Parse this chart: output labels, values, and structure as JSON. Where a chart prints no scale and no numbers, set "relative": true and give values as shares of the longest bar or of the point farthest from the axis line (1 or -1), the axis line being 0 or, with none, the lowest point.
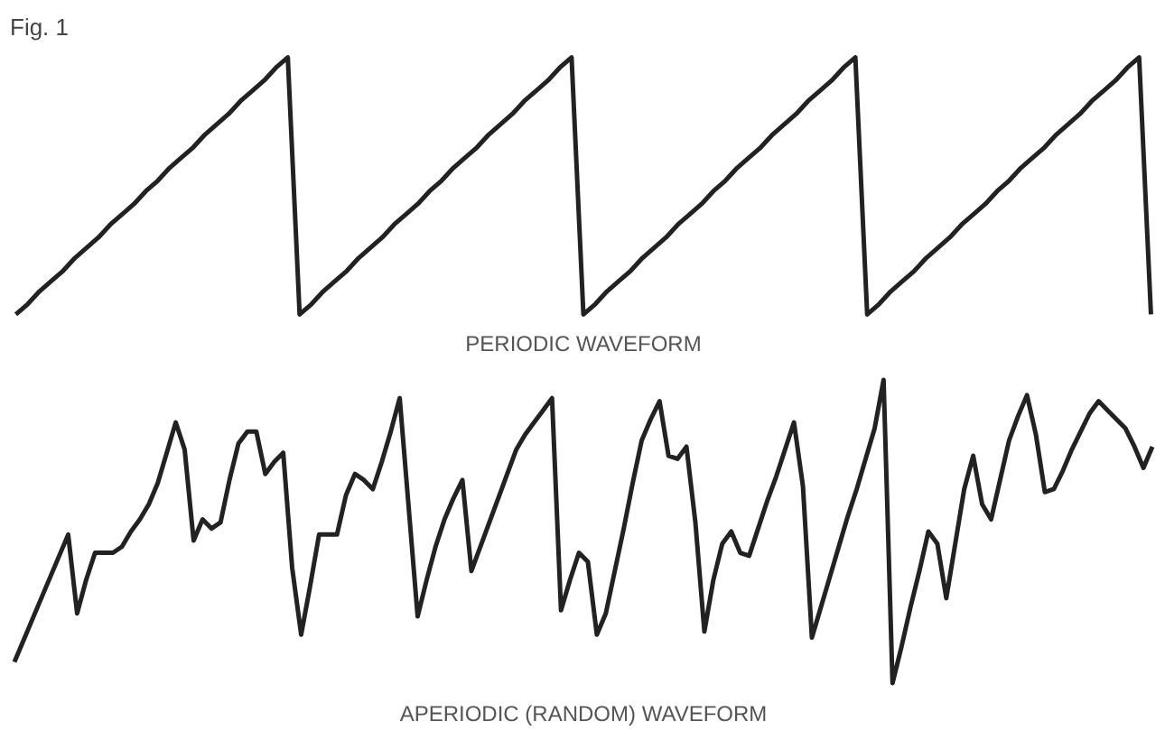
{
  "chart_data": [
    {
      "type": "line",
      "title": "Fig. 1",
      "xlabel": "PERIODIC WAVEFORM",
      "relative": true,
      "grid": false,
      "categories": [
        null,
        null,
        null,
        null,
        null,
        null,
        null,
        null,
        null,
        null,
        null,
        null,
        null,
        null,
        null,
        null,
        null,
        null,
        null,
        null,
        null,
        null,
        null,
        null,
        null,
        null,
        null,
        null,
        null,
        null,
        null,
        null,
        null,
        null,
        null,
        null,
        null,
        null,
        null,
        null,
        null,
        null,
        null,
        null,
        null,
        null,
        null,
        null,
        null,
        null,
        null,
        null,
        null,
        null,
        null,
        null,
        null,
        null,
        null,
        null,
        null,
        null,
        null,
        null,
        null,
        null,
        null,
        null,
        null,
        null,
        null,
        null,
        null,
        null,
        null,
        null,
        null,
        null,
        null,
        null,
        null,
        null,
        null,
        null,
        null,
        null,
        null,
        null,
        null,
        null,
        null,
        null,
        null,
        null,
        null,
        null,
        null
      ],
      "series": [
        {
          "color": "#222222",
          "values": [
            0,
            0.04,
            0.09,
            0.13,
            0.17,
            0.22,
            0.26,
            0.3,
            0.35,
            0.39,
            0.43,
            0.48,
            0.52,
            0.57,
            0.61,
            0.65,
            0.7,
            0.74,
            0.78,
            0.83,
            0.87,
            0.91,
            0.96,
            1,
            0,
            0.04,
            0.09,
            0.13,
            0.17,
            0.22,
            0.26,
            0.3,
            0.35,
            0.39,
            0.43,
            0.48,
            0.52,
            0.57,
            0.61,
            0.65,
            0.7,
            0.74,
            0.78,
            0.83,
            0.87,
            0.91,
            0.96,
            1,
            0,
            0.04,
            0.09,
            0.13,
            0.17,
            0.22,
            0.26,
            0.3,
            0.35,
            0.39,
            0.43,
            0.48,
            0.52,
            0.57,
            0.61,
            0.65,
            0.7,
            0.74,
            0.78,
            0.83,
            0.87,
            0.91,
            0.96,
            1,
            0,
            0.04,
            0.09,
            0.13,
            0.17,
            0.22,
            0.26,
            0.3,
            0.35,
            0.39,
            0.43,
            0.48,
            0.52,
            0.57,
            0.61,
            0.65,
            0.7,
            0.74,
            0.78,
            0.83,
            0.87,
            0.91,
            0.96,
            1,
            0
          ]
        }
      ]
    },
    {
      "type": "line",
      "xlabel": "APERIODIC (RANDOM) WAVEFORM",
      "relative": true,
      "grid": false,
      "categories": [
        null,
        null,
        null,
        null,
        null,
        null,
        null,
        null,
        null,
        null,
        null,
        null,
        null,
        null,
        null,
        null,
        null,
        null,
        null,
        null,
        null,
        null,
        null,
        null,
        null,
        null,
        null,
        null,
        null,
        null,
        null,
        null,
        null,
        null,
        null,
        null,
        null,
        null,
        null,
        null,
        null,
        null,
        null,
        null,
        null,
        null,
        null,
        null,
        null,
        null,
        null,
        null,
        null,
        null,
        null,
        null,
        null,
        null,
        null,
        null,
        null,
        null,
        null,
        null,
        null,
        null,
        null,
        null,
        null,
        null,
        null,
        null,
        null,
        null,
        null,
        null,
        null,
        null,
        null,
        null,
        null,
        null,
        null,
        null,
        null,
        null,
        null,
        null,
        null,
        null,
        null,
        null,
        null,
        null,
        null,
        null,
        null,
        null,
        null,
        null,
        null,
        null,
        null,
        null,
        null,
        null,
        null,
        null,
        null,
        null,
        null,
        null,
        null,
        null,
        null,
        null,
        null,
        null,
        null,
        null,
        null,
        null,
        null,
        null,
        null,
        null,
        null,
        null
      ],
      "series": [
        {
          "color": "#222222",
          "values": [
            0.07,
            0.14,
            0.21,
            0.28,
            0.35,
            0.42,
            0.49,
            0.23,
            0.34,
            0.43,
            0.43,
            0.43,
            0.45,
            0.5,
            0.54,
            0.59,
            0.66,
            0.76,
            0.86,
            0.77,
            0.47,
            0.54,
            0.51,
            0.53,
            0.67,
            0.79,
            0.83,
            0.83,
            0.69,
            0.73,
            0.76,
            0.38,
            0.16,
            0.32,
            0.49,
            0.49,
            0.49,
            0.62,
            0.69,
            0.67,
            0.64,
            0.73,
            0.83,
            0.94,
            0.58,
            0.22,
            0.34,
            0.45,
            0.54,
            0.61,
            0.67,
            0.37,
            0.45,
            0.53,
            0.61,
            0.69,
            0.77,
            0.82,
            0.86,
            0.9,
            0.94,
            0.24,
            0.34,
            0.43,
            0.4,
            0.16,
            0.23,
            0.37,
            0.51,
            0.66,
            0.8,
            0.87,
            0.93,
            0.75,
            0.74,
            0.78,
            0.53,
            0.17,
            0.34,
            0.46,
            0.5,
            0.43,
            0.42,
            0.51,
            0.6,
            0.68,
            0.77,
            0.86,
            0.65,
            0.15,
            0.25,
            0.35,
            0.45,
            0.55,
            0.64,
            0.74,
            0.84,
            1,
            0,
            0.12,
            0.25,
            0.37,
            0.5,
            0.46,
            0.28,
            0.46,
            0.64,
            0.75,
            0.59,
            0.54,
            0.67,
            0.8,
            0.88,
            0.95,
            0.82,
            0.63,
            0.64,
            0.7,
            0.77,
            0.83,
            0.89,
            0.93,
            0.9,
            0.87,
            0.84,
            0.78,
            0.71,
            0.78
          ]
        }
      ]
    }
  ]
}
